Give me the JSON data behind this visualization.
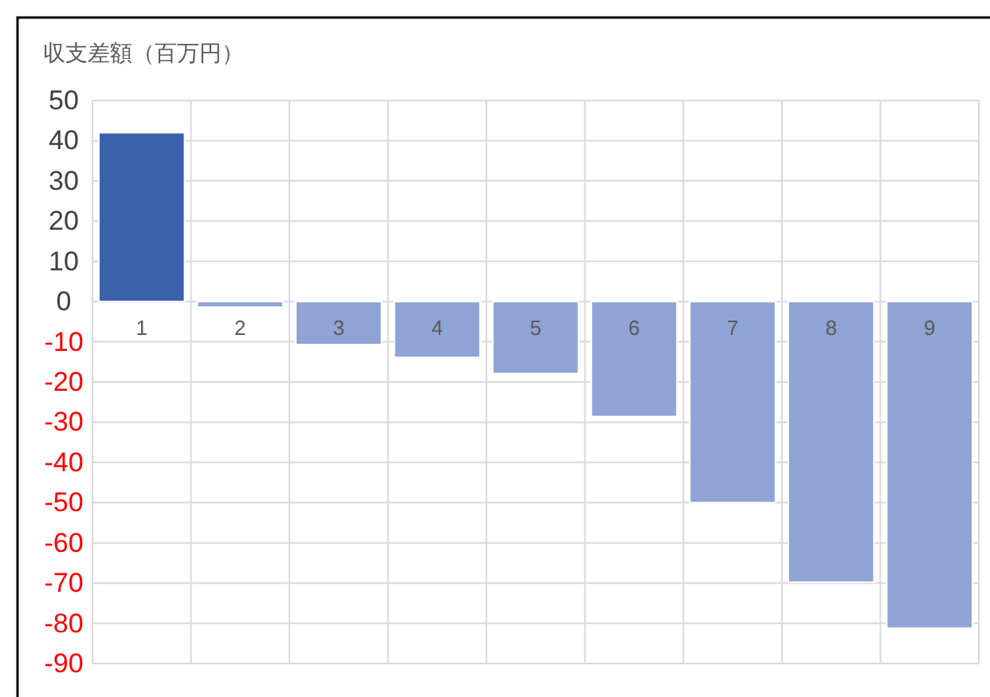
{
  "chart_data": {
    "type": "bar",
    "ylabel": "収支差額（百万円）",
    "categories": [
      "1",
      "2",
      "3",
      "4",
      "5",
      "6",
      "7",
      "8",
      "9"
    ],
    "values": [
      42,
      -1.4,
      -10.7,
      -13.9,
      -17.9,
      -28.6,
      -50,
      -69.8,
      -81.2
    ],
    "colors": [
      "#3a62ab",
      "#8fa3d4",
      "#8fa3d4",
      "#8fa3d4",
      "#8fa3d4",
      "#8fa3d4",
      "#8fa3d4",
      "#8fa3d4",
      "#8fa3d4"
    ],
    "ylim": [
      -90,
      50
    ],
    "yticks": [
      50,
      40,
      30,
      20,
      10,
      0,
      -10,
      -20,
      -30,
      -40,
      -50,
      -60,
      -70,
      -80,
      -90
    ],
    "grid": true
  }
}
